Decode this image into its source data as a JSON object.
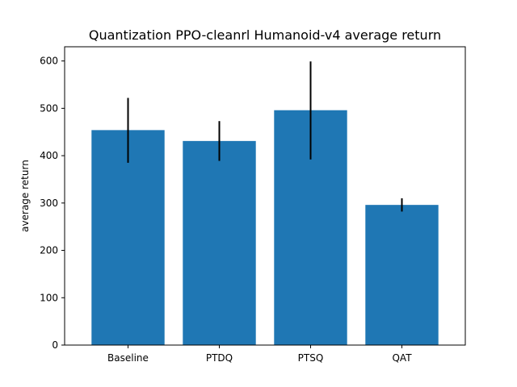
{
  "chart_data": {
    "type": "bar",
    "title": "Quantization PPO-cleanrl Humanoid-v4 average return",
    "xlabel": "",
    "ylabel": "average return",
    "categories": [
      "Baseline",
      "PTDQ",
      "PTSQ",
      "QAT"
    ],
    "values": [
      454,
      431,
      496,
      296
    ],
    "error_low": [
      385,
      389,
      392,
      282
    ],
    "error_high": [
      522,
      473,
      599,
      310
    ],
    "ylim": [
      0,
      630
    ],
    "yticks": [
      0,
      100,
      200,
      300,
      400,
      500,
      600
    ],
    "grid": false,
    "legend": "none",
    "colors": {
      "bar": "#1f77b4",
      "error_bar": "#000000",
      "axis": "#000000"
    }
  }
}
